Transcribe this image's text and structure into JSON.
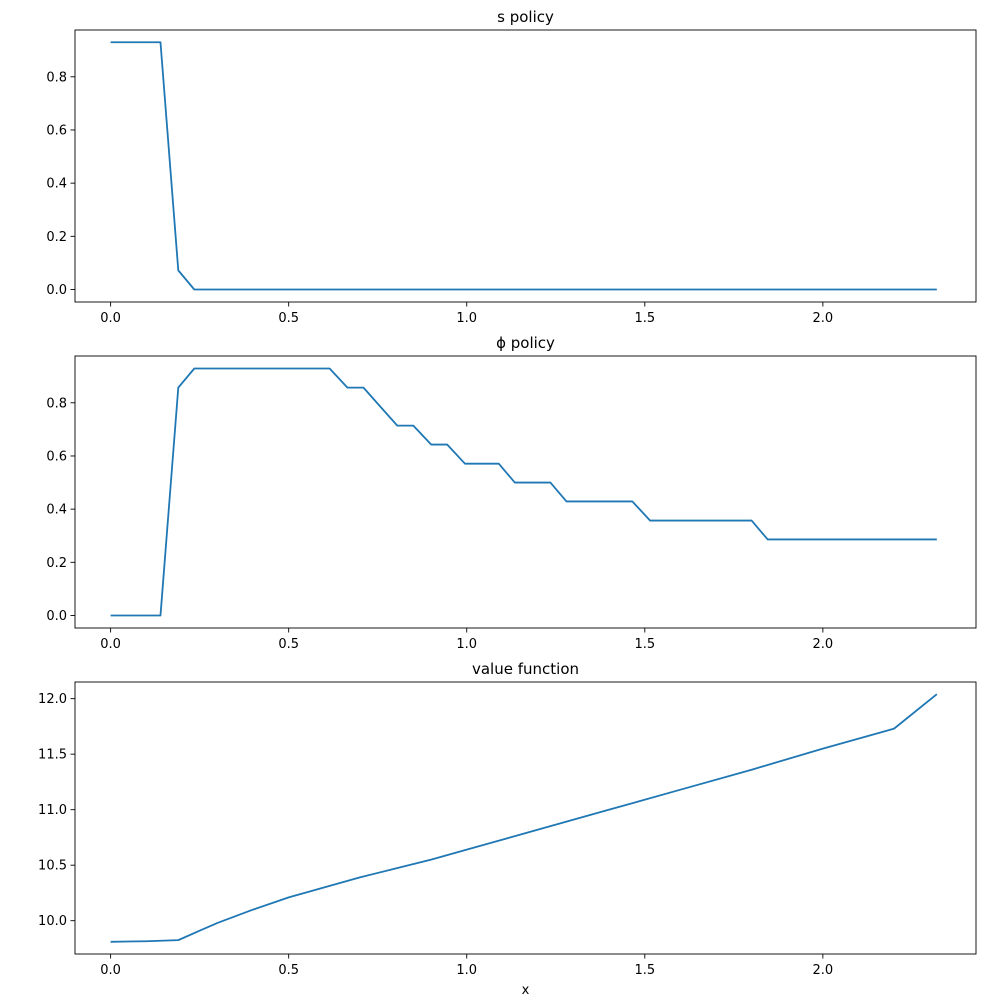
{
  "chart_data": [
    {
      "type": "line",
      "title": "s policy",
      "xlabel": "",
      "ylabel": "",
      "xlim": [
        -0.1,
        2.43
      ],
      "ylim": [
        -0.047,
        0.976
      ],
      "xticks": [
        0.0,
        0.5,
        1.0,
        1.5,
        2.0
      ],
      "xtick_labels": [
        "0.0",
        "0.5",
        "1.0",
        "1.5",
        "2.0"
      ],
      "yticks": [
        0.0,
        0.2,
        0.4,
        0.6,
        0.8
      ],
      "ytick_labels": [
        "0.0",
        "0.2",
        "0.4",
        "0.6",
        "0.8"
      ],
      "grid": false,
      "series": [
        {
          "color": "#1f77b4",
          "x": [
            0.0,
            0.14,
            0.19,
            0.235,
            2.32
          ],
          "y": [
            0.93,
            0.93,
            0.072,
            0.0,
            0.0
          ]
        }
      ]
    },
    {
      "type": "line",
      "title": "ϕ policy",
      "xlabel": "",
      "ylabel": "",
      "xlim": [
        -0.1,
        2.43
      ],
      "ylim": [
        -0.047,
        0.976
      ],
      "xticks": [
        0.0,
        0.5,
        1.0,
        1.5,
        2.0
      ],
      "xtick_labels": [
        "0.0",
        "0.5",
        "1.0",
        "1.5",
        "2.0"
      ],
      "yticks": [
        0.0,
        0.2,
        0.4,
        0.6,
        0.8
      ],
      "ytick_labels": [
        "0.0",
        "0.2",
        "0.4",
        "0.6",
        "0.8"
      ],
      "grid": false,
      "series": [
        {
          "color": "#1f77b4",
          "x": [
            0.0,
            0.14,
            0.19,
            0.235,
            0.615,
            0.665,
            0.71,
            0.805,
            0.85,
            0.9,
            0.945,
            0.995,
            1.09,
            1.135,
            1.235,
            1.28,
            1.465,
            1.515,
            1.8,
            1.845,
            2.32
          ],
          "y": [
            0.0,
            0.0,
            0.857,
            0.929,
            0.929,
            0.857,
            0.857,
            0.714,
            0.714,
            0.643,
            0.643,
            0.571,
            0.571,
            0.5,
            0.5,
            0.429,
            0.429,
            0.357,
            0.357,
            0.286,
            0.286
          ]
        }
      ]
    },
    {
      "type": "line",
      "title": "value function",
      "xlabel": "x",
      "ylabel": "",
      "xlim": [
        -0.1,
        2.43
      ],
      "ylim": [
        9.7,
        12.15
      ],
      "xticks": [
        0.0,
        0.5,
        1.0,
        1.5,
        2.0
      ],
      "xtick_labels": [
        "0.0",
        "0.5",
        "1.0",
        "1.5",
        "2.0"
      ],
      "yticks": [
        10.0,
        10.5,
        11.0,
        11.5,
        12.0
      ],
      "ytick_labels": [
        "10.0",
        "10.5",
        "11.0",
        "11.5",
        "12.0"
      ],
      "grid": false,
      "series": [
        {
          "color": "#1f77b4",
          "x": [
            0.0,
            0.1,
            0.19,
            0.25,
            0.3,
            0.4,
            0.5,
            0.6,
            0.7,
            0.8,
            0.9,
            1.0,
            1.2,
            1.4,
            1.6,
            1.8,
            2.0,
            2.2,
            2.32
          ],
          "y": [
            9.81,
            9.815,
            9.825,
            9.91,
            9.98,
            10.1,
            10.21,
            10.3,
            10.39,
            10.47,
            10.55,
            10.64,
            10.82,
            11.0,
            11.18,
            11.36,
            11.55,
            11.73,
            12.04
          ]
        }
      ]
    }
  ]
}
